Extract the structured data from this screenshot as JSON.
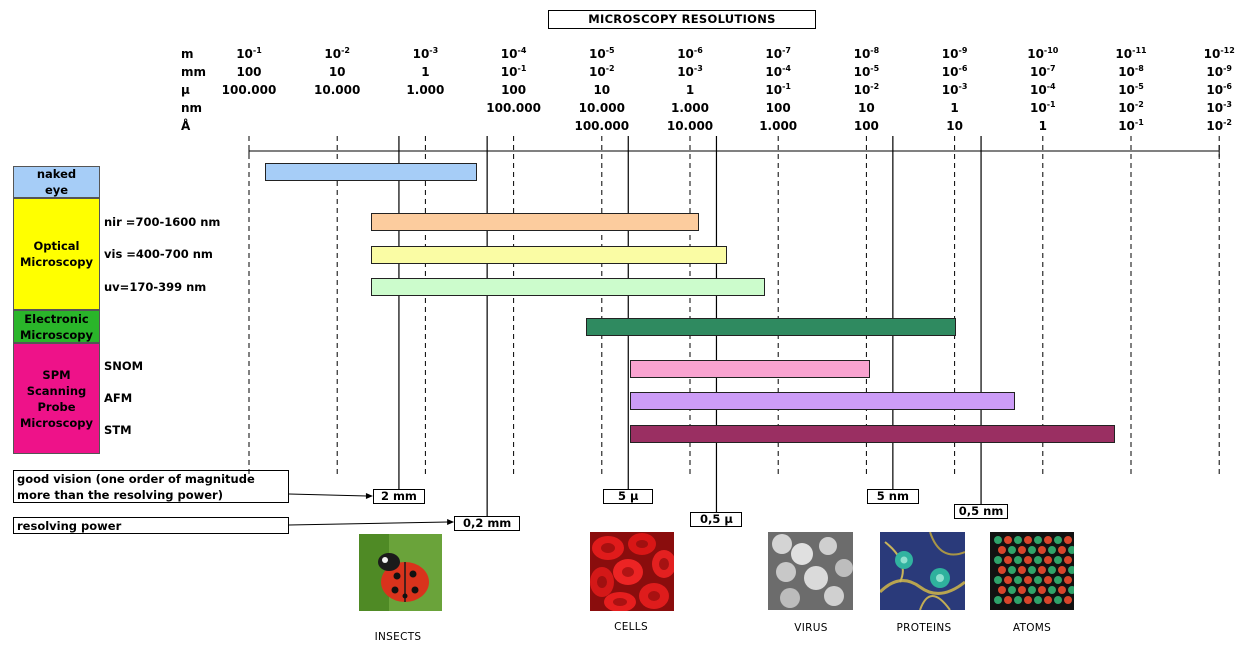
{
  "title": "MICROSCOPY RESOLUTIONS",
  "unit_labels": [
    "m",
    "mm",
    "μ",
    "nm",
    "Å"
  ],
  "scale": [
    {
      "m_base": "10",
      "m_exp": "-1",
      "mm": "100",
      "mm_exp": "",
      "mu": "100.000",
      "mu_exp": "",
      "nm": "",
      "nm_exp": "",
      "A": "",
      "A_exp": ""
    },
    {
      "m_base": "10",
      "m_exp": "-2",
      "mm": "10",
      "mm_exp": "",
      "mu": "10.000",
      "mu_exp": "",
      "nm": "",
      "nm_exp": "",
      "A": "",
      "A_exp": ""
    },
    {
      "m_base": "10",
      "m_exp": "-3",
      "mm": "1",
      "mm_exp": "",
      "mu": "1.000",
      "mu_exp": "",
      "nm": "",
      "nm_exp": "",
      "A": "",
      "A_exp": ""
    },
    {
      "m_base": "10",
      "m_exp": "-4",
      "mm": "10",
      "mm_exp": "-1",
      "mu": "100",
      "mu_exp": "",
      "nm": "100.000",
      "nm_exp": "",
      "A": "",
      "A_exp": ""
    },
    {
      "m_base": "10",
      "m_exp": "-5",
      "mm": "10",
      "mm_exp": "-2",
      "mu": "10",
      "mu_exp": "",
      "nm": "10.000",
      "nm_exp": "",
      "A": "100.000",
      "A_exp": ""
    },
    {
      "m_base": "10",
      "m_exp": "-6",
      "mm": "10",
      "mm_exp": "-3",
      "mu": "1",
      "mu_exp": "",
      "nm": "1.000",
      "nm_exp": "",
      "A": "10.000",
      "A_exp": ""
    },
    {
      "m_base": "10",
      "m_exp": "-7",
      "mm": "10",
      "mm_exp": "-4",
      "mu": "10",
      "mu_exp": "-1",
      "nm": "100",
      "nm_exp": "",
      "A": "1.000",
      "A_exp": ""
    },
    {
      "m_base": "10",
      "m_exp": "-8",
      "mm": "10",
      "mm_exp": "-5",
      "mu": "10",
      "mu_exp": "-2",
      "nm": "10",
      "nm_exp": "",
      "A": "100",
      "A_exp": ""
    },
    {
      "m_base": "10",
      "m_exp": "-9",
      "mm": "10",
      "mm_exp": "-6",
      "mu": "10",
      "mu_exp": "-3",
      "nm": "1",
      "nm_exp": "",
      "A": "10",
      "A_exp": ""
    },
    {
      "m_base": "10",
      "m_exp": "-10",
      "mm": "10",
      "mm_exp": "-7",
      "mu": "10",
      "mu_exp": "-4",
      "nm": "10",
      "nm_exp": "-1",
      "A": "1",
      "A_exp": ""
    },
    {
      "m_base": "10",
      "m_exp": "-11",
      "mm": "10",
      "mm_exp": "-8",
      "mu": "10",
      "mu_exp": "-5",
      "nm": "10",
      "nm_exp": "-2",
      "A": "10",
      "A_exp": "-1"
    },
    {
      "m_base": "10",
      "m_exp": "-12",
      "mm": "10",
      "mm_exp": "-9",
      "mu": "10",
      "mu_exp": "-6",
      "nm": "10",
      "nm_exp": "-3",
      "A": "10",
      "A_exp": "-2"
    }
  ],
  "categories": {
    "naked_eye": "naked eye",
    "optical": "Optical Microscopy",
    "electronic": "Electronic Microscopy",
    "spm": "SPM Scanning Probe Microscopy"
  },
  "row_labels": {
    "nir": "nir =700-1600 nm",
    "vis": "vis =400-700 nm",
    "uv": "uv=170-399 nm",
    "snom": "SNOM",
    "afm": "AFM",
    "stm": "STM"
  },
  "ranges": [
    {
      "id": "naked_eye",
      "from_exp": -1.18,
      "to_exp": -3.58,
      "color": "#a6cdf7"
    },
    {
      "id": "nir",
      "from_exp": -2.38,
      "to_exp": -6.1,
      "color": "#fccc9e"
    },
    {
      "id": "vis",
      "from_exp": -2.38,
      "to_exp": -6.42,
      "color": "#fafca4"
    },
    {
      "id": "uv",
      "from_exp": -2.38,
      "to_exp": -6.85,
      "color": "#ccfccc"
    },
    {
      "id": "electronic",
      "from_exp": -4.82,
      "to_exp": -9.02,
      "color": "#2f8a60"
    },
    {
      "id": "snom",
      "from_exp": -5.32,
      "to_exp": -8.04,
      "color": "#f9a3d0"
    },
    {
      "id": "afm",
      "from_exp": -5.32,
      "to_exp": -9.68,
      "color": "#cc9cf7"
    },
    {
      "id": "stm",
      "from_exp": -5.32,
      "to_exp": -10.82,
      "color": "#9a2f62"
    }
  ],
  "markers": [
    {
      "label": "2 mm",
      "exp": -2.7
    },
    {
      "label": "0,2 mm",
      "exp": -3.7
    },
    {
      "label": "5 μ",
      "exp": -5.3
    },
    {
      "label": "0,5 μ",
      "exp": -6.3
    },
    {
      "label": "5 nm",
      "exp": -8.3
    },
    {
      "label": "0,5 nm",
      "exp": -9.3
    }
  ],
  "notes": {
    "good_vision": "good vision (one order of magnitude more than the resolving power)",
    "resolving_power": "resolving power"
  },
  "examples": [
    {
      "id": "insects",
      "caption": "INSECTS"
    },
    {
      "id": "cells",
      "caption": "CELLS"
    },
    {
      "id": "virus",
      "caption": "VIRUS"
    },
    {
      "id": "proteins",
      "caption": "PROTEINS"
    },
    {
      "id": "atoms",
      "caption": "ATOMS"
    }
  ],
  "colors": {
    "naked_eye_cat": "#a6cdf7",
    "optical_cat": "#ffff00",
    "electronic_cat": "#2ab52a",
    "spm_cat": "#ee1289"
  }
}
